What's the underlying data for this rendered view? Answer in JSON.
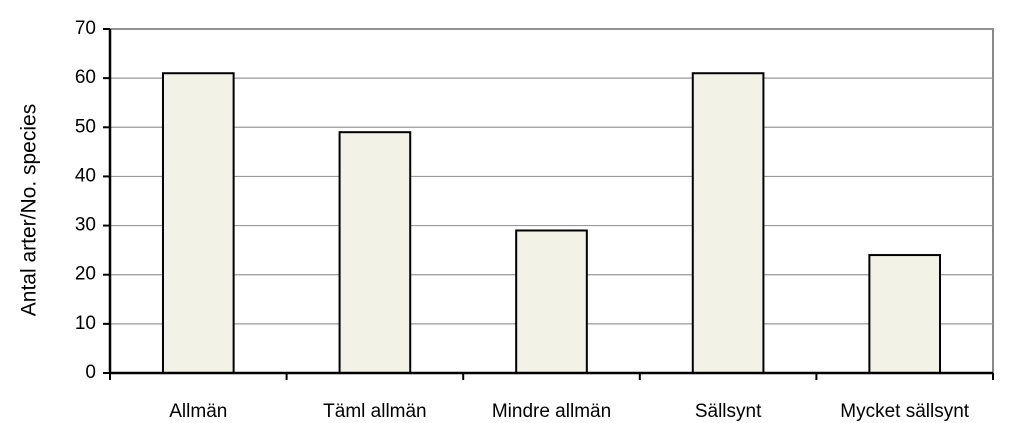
{
  "chart_data": {
    "type": "bar",
    "y_label": "Antal arter/No. species",
    "categories": [
      "Allmän",
      "Täml allmän",
      "Mindre allmän",
      "Sällsynt",
      "Mycket sällsynt"
    ],
    "values": [
      61,
      49,
      29,
      61,
      24
    ],
    "color": "#f2f2e6",
    "ylim": [
      0,
      70
    ],
    "yticks": [
      0,
      10,
      20,
      30,
      40,
      50,
      60,
      70
    ],
    "grid": true
  }
}
